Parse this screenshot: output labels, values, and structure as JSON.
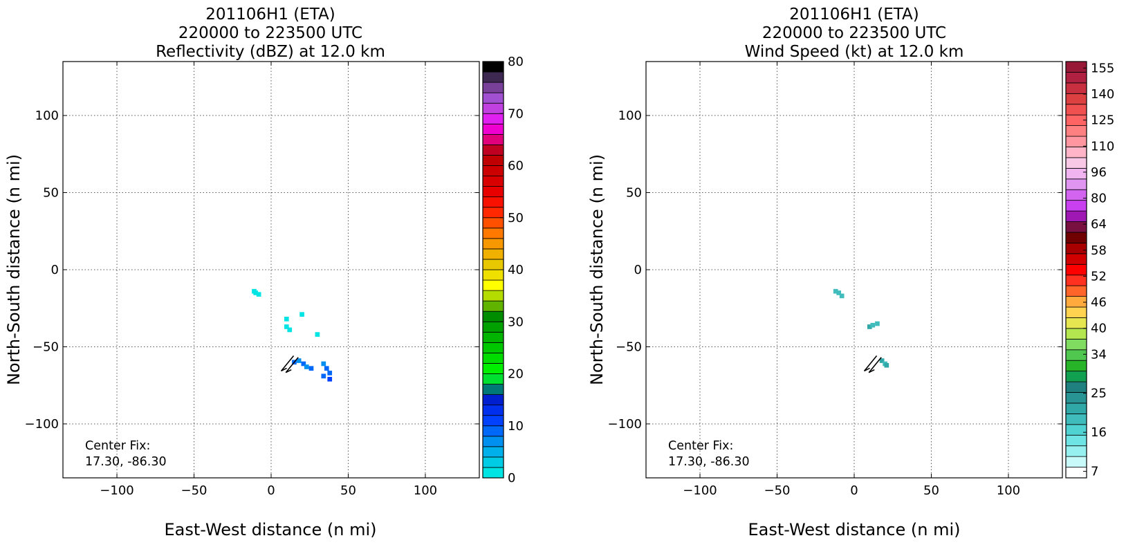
{
  "chart_data": [
    {
      "type": "heatmap",
      "title_lines": [
        "201106H1 (ETA)",
        "220000 to 223500 UTC",
        "Reflectivity (dBZ) at 12.0 km"
      ],
      "xlabel": "East-West distance (n mi)",
      "ylabel": "North-South distance (n mi)",
      "xlim": [
        -135,
        135
      ],
      "ylim": [
        -135,
        135
      ],
      "xticks": [
        -100,
        -50,
        0,
        50,
        100
      ],
      "yticks": [
        -100,
        -50,
        0,
        50,
        100
      ],
      "xtick_labels": [
        "−100",
        "−50",
        "0",
        "50",
        "100"
      ],
      "ytick_labels": [
        "−100",
        "−50",
        "0",
        "50",
        "100"
      ],
      "grid": true,
      "annotation": [
        "Center Fix:",
        "17.30, -86.30"
      ],
      "colorbar": {
        "levels": [
          0,
          2.5,
          5,
          7.5,
          10,
          12.5,
          15,
          17.5,
          20,
          22.5,
          25,
          27.5,
          30,
          32.5,
          35,
          37.5,
          40,
          42.5,
          45,
          47.5,
          50,
          52.5,
          55,
          57.5,
          60,
          62.5,
          65,
          67.5,
          70,
          72.5,
          75,
          77.5,
          80
        ],
        "colors": [
          "#00e4e4",
          "#00cce6",
          "#00b0ea",
          "#0090f0",
          "#0068f8",
          "#0040ff",
          "#0030ee",
          "#0020d0",
          "#007878",
          "#00e030",
          "#00ee00",
          "#00dc00",
          "#00c800",
          "#00b400",
          "#00a000",
          "#008c00",
          "#60b400",
          "#b4dc00",
          "#ffff00",
          "#f0e000",
          "#e8c800",
          "#f0b000",
          "#f89800",
          "#ff7800",
          "#ff5000",
          "#ff2800",
          "#f81000",
          "#e80000",
          "#d80000",
          "#cc0000",
          "#c00000",
          "#c00020",
          "#e0007c",
          "#f000d0",
          "#e020f0",
          "#c040e0",
          "#a050d0",
          "#784098",
          "#3c2850",
          "#000000"
        ],
        "tick_values": [
          0,
          10,
          20,
          30,
          40,
          50,
          60,
          70,
          80
        ],
        "tick_labels": [
          "0",
          "10",
          "20",
          "30",
          "40",
          "50",
          "60",
          "70",
          "80"
        ]
      },
      "data_cells": [
        {
          "x": -11,
          "y": -14,
          "value": 2
        },
        {
          "x": -10,
          "y": -15,
          "value": 2
        },
        {
          "x": -8,
          "y": -16,
          "value": 2
        },
        {
          "x": 10,
          "y": -32,
          "value": 2
        },
        {
          "x": 20,
          "y": -29,
          "value": 2
        },
        {
          "x": 10,
          "y": -37,
          "value": 2
        },
        {
          "x": 12,
          "y": -39,
          "value": 2
        },
        {
          "x": 30,
          "y": -42,
          "value": 2
        },
        {
          "x": 15,
          "y": -60,
          "value": 12
        },
        {
          "x": 18,
          "y": -59,
          "value": 9
        },
        {
          "x": 21,
          "y": -61,
          "value": 11
        },
        {
          "x": 23,
          "y": -63,
          "value": 9
        },
        {
          "x": 26,
          "y": -64,
          "value": 12
        },
        {
          "x": 34,
          "y": -61,
          "value": 9
        },
        {
          "x": 36,
          "y": -64,
          "value": 11
        },
        {
          "x": 38,
          "y": -67,
          "value": 11
        },
        {
          "x": 34,
          "y": -69,
          "value": 12
        },
        {
          "x": 38,
          "y": -71,
          "value": 13
        }
      ],
      "wind_barbs": [
        {
          "x": 11,
          "y": -63
        },
        {
          "x": 14,
          "y": -64
        }
      ]
    },
    {
      "type": "heatmap",
      "title_lines": [
        "201106H1 (ETA)",
        "220000 to 223500 UTC",
        "Wind Speed (kt) at 12.0 km"
      ],
      "xlabel": "East-West distance (n mi)",
      "ylabel": "North-South distance (n mi)",
      "xlim": [
        -135,
        135
      ],
      "ylim": [
        -135,
        135
      ],
      "xticks": [
        -100,
        -50,
        0,
        50,
        100
      ],
      "yticks": [
        -100,
        -50,
        0,
        50,
        100
      ],
      "xtick_labels": [
        "−100",
        "−50",
        "0",
        "50",
        "100"
      ],
      "ytick_labels": [
        "−100",
        "−50",
        "0",
        "50",
        "100"
      ],
      "grid": true,
      "annotation": [
        "Center Fix:",
        "17.30, -86.30"
      ],
      "colorbar": {
        "levels": [
          7,
          10,
          13,
          16,
          19,
          22,
          25,
          28,
          31,
          34,
          37,
          40,
          43,
          46,
          49,
          52,
          55,
          58,
          61,
          64,
          72,
          80,
          88,
          96,
          103,
          110,
          118,
          125,
          133,
          140,
          148,
          155,
          163
        ],
        "colors": [
          "#ffffff",
          "#c8fafa",
          "#96f0f0",
          "#6ee4e4",
          "#50d2d2",
          "#40bcbc",
          "#30a8a8",
          "#289494",
          "#208080",
          "#10a050",
          "#28b428",
          "#50c850",
          "#80dc60",
          "#b4e650",
          "#e6e650",
          "#ffd250",
          "#ffaa3c",
          "#ff6428",
          "#ff3020",
          "#ff0000",
          "#d00000",
          "#a80000",
          "#700000",
          "#781040",
          "#a018b4",
          "#c840f0",
          "#d264f0",
          "#e096f0",
          "#f0b4f0",
          "#f8c8e6",
          "#ffb4c8",
          "#ff96a0",
          "#ff8080",
          "#ff6464",
          "#f05050",
          "#dc4040",
          "#c83040",
          "#b02040",
          "#981838"
        ],
        "tick_values": [
          7,
          16,
          25,
          34,
          40,
          46,
          52,
          58,
          64,
          80,
          96,
          110,
          125,
          140,
          155
        ],
        "tick_labels": [
          "7",
          "16",
          "25",
          "34",
          "40",
          "46",
          "52",
          "58",
          "64",
          "80",
          "96",
          "110",
          "125",
          "140",
          "155"
        ]
      },
      "data_cells": [
        {
          "x": -12,
          "y": -14,
          "value": 24
        },
        {
          "x": -10,
          "y": -15,
          "value": 24
        },
        {
          "x": -8,
          "y": -17,
          "value": 24
        },
        {
          "x": 10,
          "y": -37,
          "value": 26
        },
        {
          "x": 12,
          "y": -36,
          "value": 24
        },
        {
          "x": 15,
          "y": -35,
          "value": 24
        },
        {
          "x": 18,
          "y": -59,
          "value": 26
        },
        {
          "x": 20,
          "y": -61,
          "value": 24
        },
        {
          "x": 21,
          "y": -62,
          "value": 26
        }
      ],
      "wind_barbs": [
        {
          "x": 11,
          "y": -63
        },
        {
          "x": 14,
          "y": -64
        }
      ]
    }
  ]
}
